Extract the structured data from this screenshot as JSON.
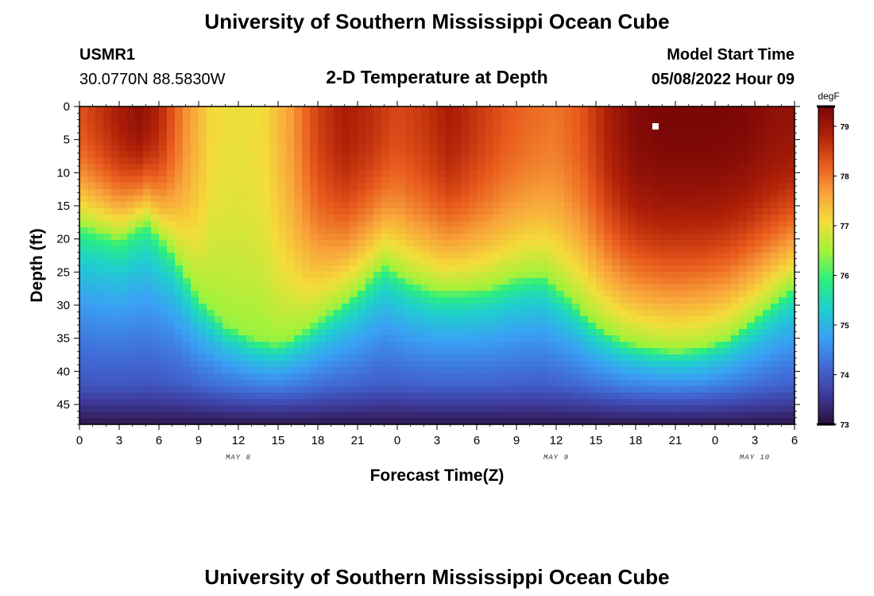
{
  "header": {
    "title": "University of Southern Mississippi Ocean Cube",
    "station_id": "USMR1",
    "coordinates": "30.0770N  88.5830W",
    "subtitle": "2-D Temperature at Depth",
    "model_start_label": "Model Start Time",
    "model_start_value": "05/08/2022 Hour 09"
  },
  "footer": {
    "title": "University of Southern Mississippi Ocean Cube"
  },
  "colors": {
    "colormap": [
      "#2b0f3a",
      "#3e3a9a",
      "#4169d6",
      "#3aa0f4",
      "#1fcfcf",
      "#2cef7c",
      "#a4f23a",
      "#f4dd3a",
      "#f8a23a",
      "#e85a1c",
      "#b02108",
      "#7a0606"
    ],
    "marker": "#ffffff"
  },
  "chart_data": {
    "type": "heatmap",
    "title": "2-D Temperature at Depth",
    "xlabel": "Forecast Time(Z)",
    "ylabel": "Depth (ft)",
    "x_unit": "hours since May 8 00Z",
    "xlim": [
      0,
      54
    ],
    "ylim": [
      48,
      0
    ],
    "x_tick_values": [
      0,
      3,
      6,
      9,
      12,
      15,
      18,
      21,
      24,
      27,
      30,
      33,
      36,
      39,
      42,
      45,
      48,
      51,
      54
    ],
    "x_tick_labels": [
      "0",
      "3",
      "6",
      "9",
      "12",
      "15",
      "18",
      "21",
      "0",
      "3",
      "6",
      "9",
      "12",
      "15",
      "18",
      "21",
      "0",
      "3",
      "6"
    ],
    "y_tick_values": [
      0,
      5,
      10,
      15,
      20,
      25,
      30,
      35,
      40,
      45
    ],
    "y_tick_labels": [
      "0",
      "5",
      "10",
      "15",
      "20",
      "25",
      "30",
      "35",
      "40",
      "45"
    ],
    "date_labels": [
      {
        "x": 12,
        "text": "MAY 8"
      },
      {
        "x": 36,
        "text": "MAY 9"
      },
      {
        "x": 51,
        "text": "MAY 10"
      }
    ],
    "colorbar": {
      "unit": "degF",
      "min": 73,
      "max": 79.4,
      "tick_values": [
        73,
        74,
        75,
        76,
        77,
        78,
        79
      ],
      "tick_labels": [
        "73",
        "74",
        "75",
        "76",
        "77",
        "78",
        "79"
      ]
    },
    "marker": {
      "time_hours": 43.5,
      "depth_ft": 3
    },
    "thermocline_depth_ft": {
      "time_hours": [
        0,
        3,
        5,
        7,
        9,
        11,
        13,
        15,
        17,
        19,
        21,
        23,
        25,
        27,
        29,
        31,
        33,
        35,
        37,
        39,
        41,
        43,
        45,
        47,
        49,
        51,
        53,
        54
      ],
      "depth": [
        18,
        20,
        17.5,
        22,
        29,
        33,
        35,
        36,
        34,
        31,
        28,
        24,
        26.5,
        28,
        28,
        27.5,
        26,
        25.5,
        29,
        33,
        35.5,
        36.5,
        37,
        36.5,
        35,
        32,
        28.5,
        27
      ]
    },
    "surface_warmth_degF": {
      "time_hours": [
        0,
        3,
        4.5,
        6,
        8,
        10,
        12,
        14,
        16,
        18,
        20,
        22,
        24,
        26,
        28,
        30,
        32,
        34,
        36,
        38,
        40,
        42,
        44,
        46,
        48,
        50,
        52,
        54
      ],
      "value": [
        78.3,
        78.9,
        79.15,
        78.8,
        77.8,
        77.1,
        77.0,
        77.1,
        77.7,
        78.5,
        78.9,
        78.7,
        78.4,
        78.6,
        78.9,
        78.6,
        78.3,
        78.1,
        78.0,
        78.3,
        78.9,
        79.3,
        79.4,
        79.4,
        79.4,
        79.35,
        79.2,
        79.1
      ]
    },
    "bottom_temp_degF": 73.6
  }
}
